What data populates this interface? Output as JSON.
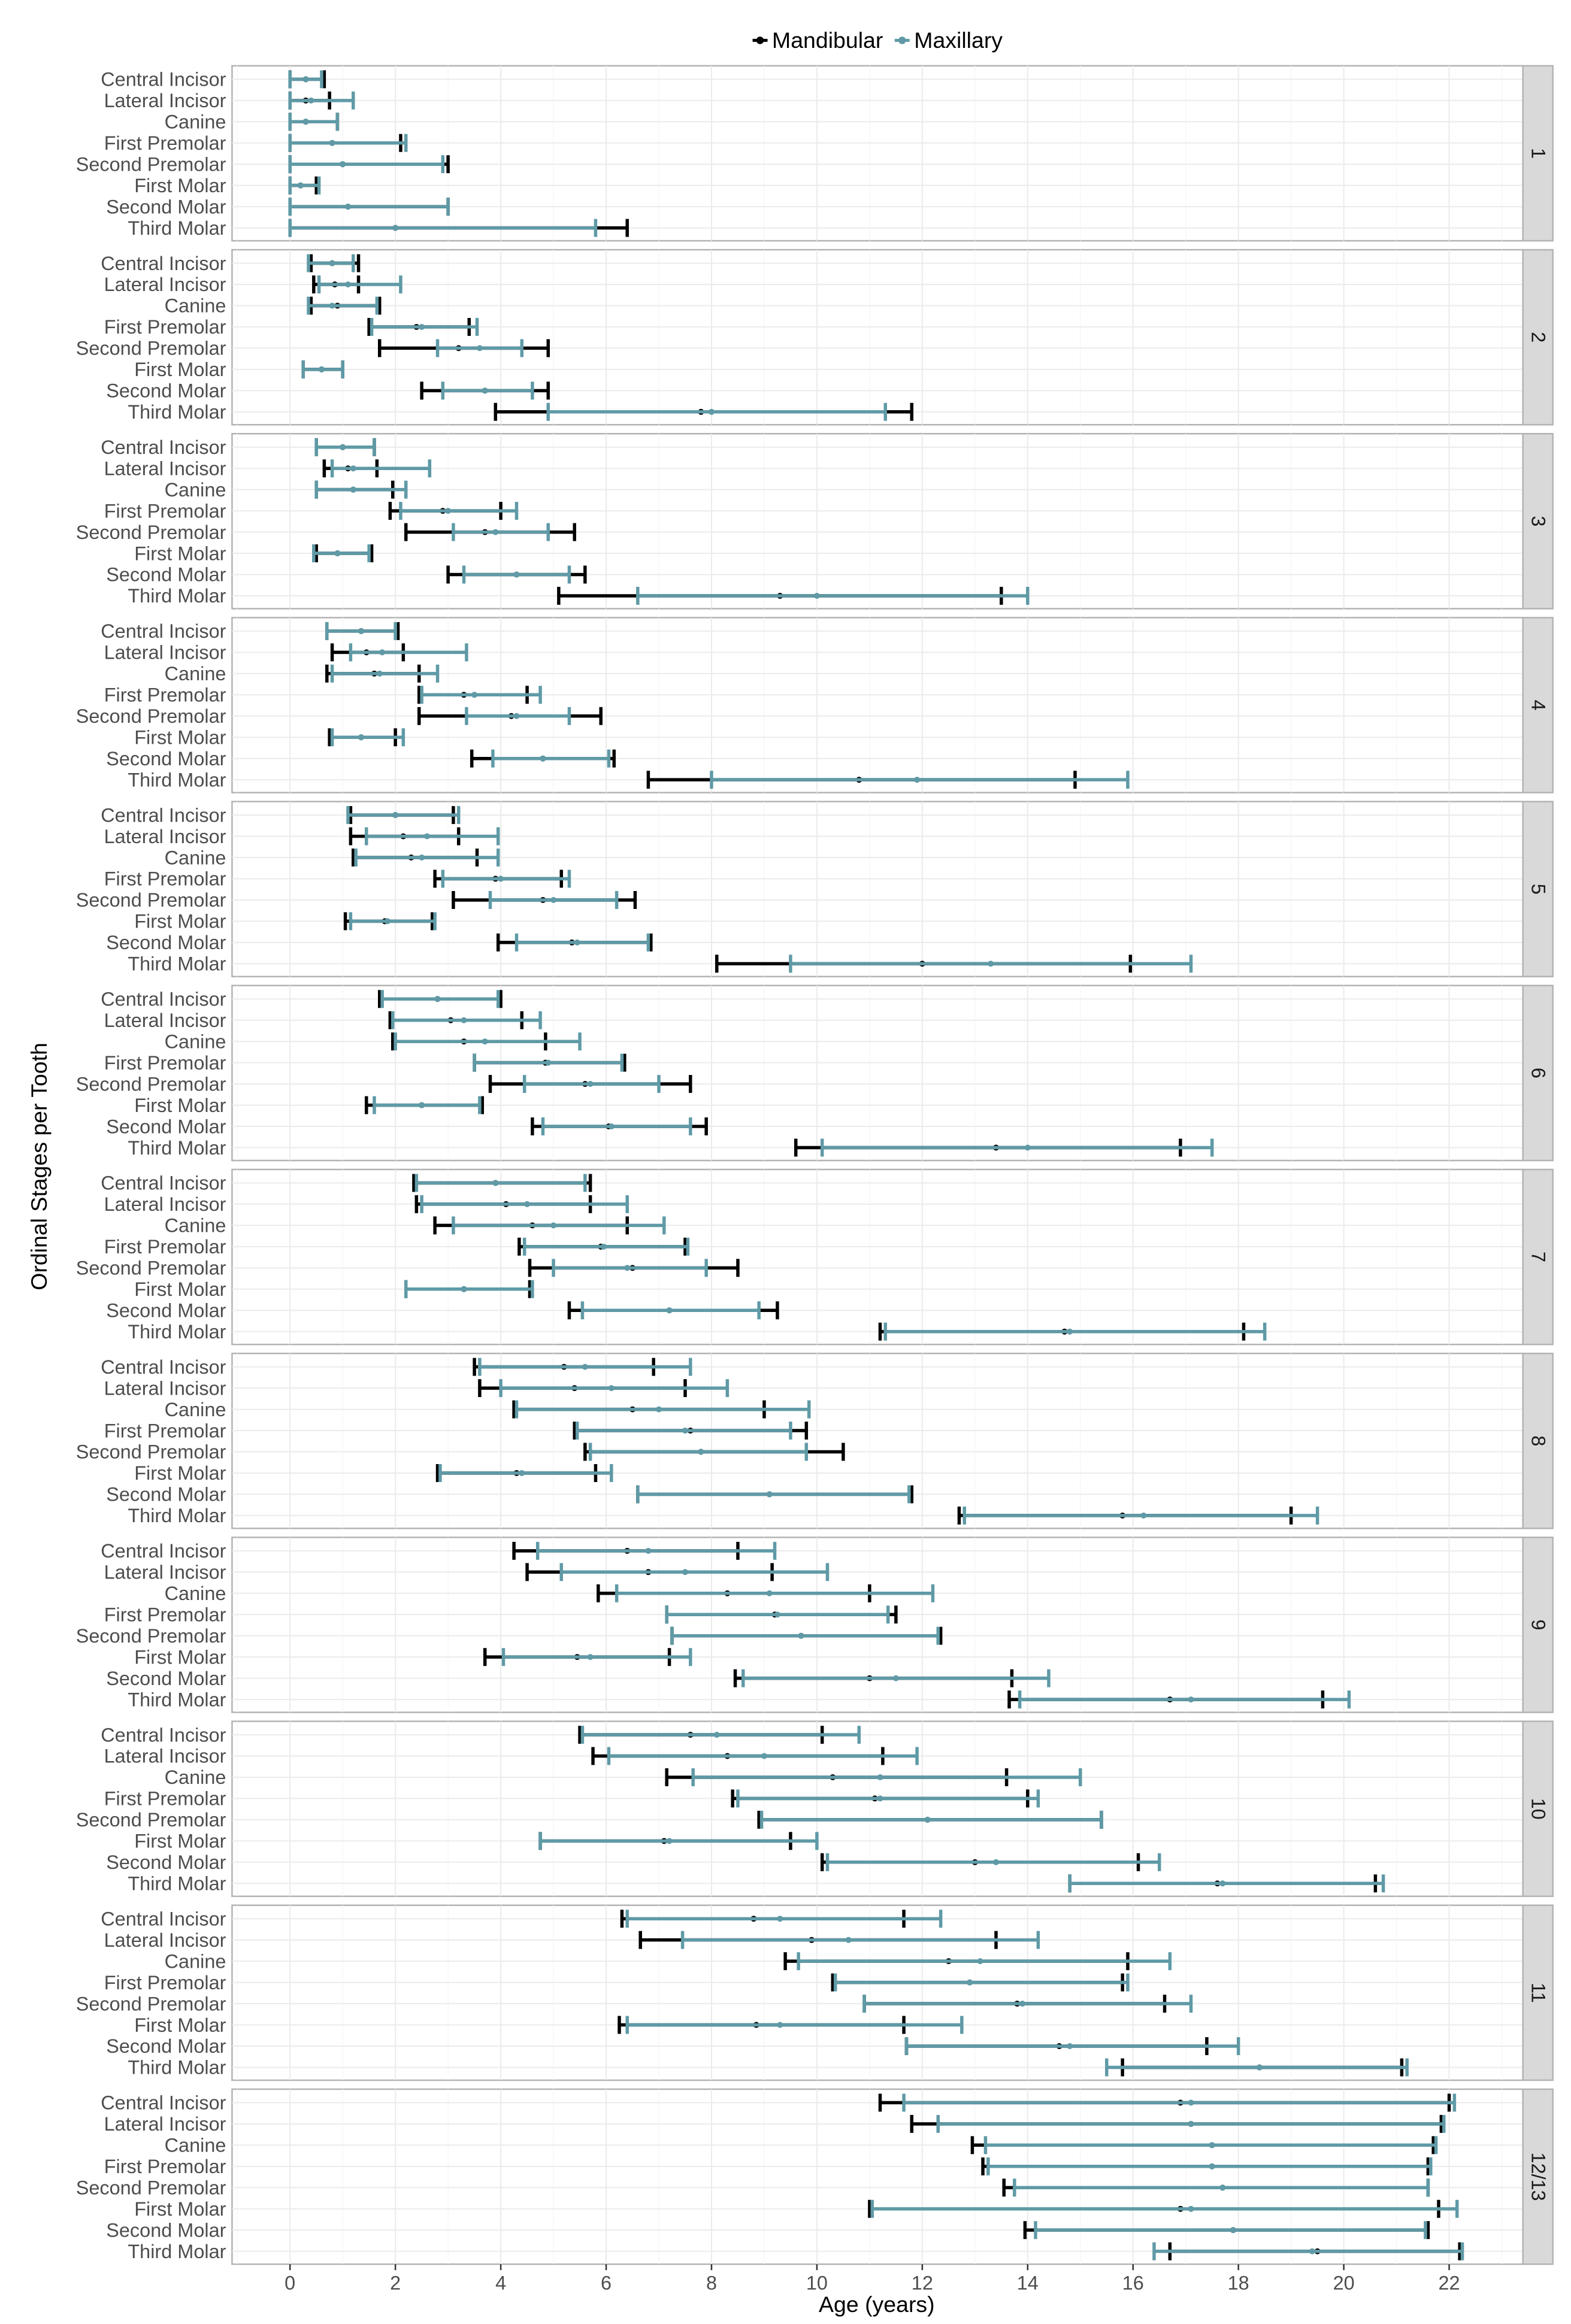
{
  "chart_data": {
    "type": "errorbar",
    "xlabel": "Age (years)",
    "ylabel": "Ordinal Stages per Tooth",
    "xlim": [
      -1.1,
      23.4
    ],
    "xticks": [
      0,
      2,
      4,
      6,
      8,
      10,
      12,
      14,
      16,
      18,
      20,
      22
    ],
    "grid": true,
    "legend": {
      "position": "top",
      "entries": [
        "Mandibular",
        "Maxillary"
      ]
    },
    "colors": {
      "Mandibular": "#000000",
      "Maxillary": "#5f9aa6"
    },
    "teeth": [
      "Central Incisor",
      "Lateral Incisor",
      "Canine",
      "First Premolar",
      "Second Premolar",
      "First Molar",
      "Second Molar",
      "Third Molar"
    ],
    "value_format": "[lower, median, upper] age in years per tooth",
    "stages": [
      {
        "label": "1",
        "Mandibular": [
          [
            0,
            0.3,
            0.65
          ],
          [
            0,
            0.3,
            0.75
          ],
          [
            0,
            0.3,
            0.9
          ],
          [
            0,
            0.8,
            2.1
          ],
          [
            0,
            1.0,
            3.0
          ],
          [
            0,
            0.2,
            0.5
          ],
          [
            0,
            1.1,
            3.0
          ],
          [
            0,
            2.0,
            6.4
          ]
        ],
        "Maxillary": [
          [
            0,
            0.3,
            0.6
          ],
          [
            0,
            0.4,
            1.2
          ],
          [
            0,
            0.3,
            0.9
          ],
          [
            0,
            0.8,
            2.2
          ],
          [
            0,
            1.0,
            2.9
          ],
          [
            0,
            0.2,
            0.55
          ],
          [
            0,
            1.1,
            3.0
          ],
          [
            0,
            2.0,
            5.8
          ]
        ]
      },
      {
        "label": "2",
        "Mandibular": [
          [
            0.4,
            0.8,
            1.3
          ],
          [
            0.45,
            0.85,
            1.3
          ],
          [
            0.4,
            0.9,
            1.7
          ],
          [
            1.5,
            2.4,
            3.4
          ],
          [
            1.7,
            3.2,
            4.9
          ],
          [
            0.25,
            0.6,
            1.0
          ],
          [
            2.5,
            3.7,
            4.9
          ],
          [
            3.9,
            7.8,
            11.8
          ]
        ],
        "Maxillary": [
          [
            0.35,
            0.8,
            1.2
          ],
          [
            0.55,
            1.1,
            2.1
          ],
          [
            0.35,
            0.8,
            1.65
          ],
          [
            1.55,
            2.5,
            3.55
          ],
          [
            2.8,
            3.6,
            4.4
          ],
          [
            0.25,
            0.6,
            1.0
          ],
          [
            2.9,
            3.7,
            4.6
          ],
          [
            4.9,
            8.0,
            11.3
          ]
        ]
      },
      {
        "label": "3",
        "Mandibular": [
          [
            0.5,
            1.0,
            1.6
          ],
          [
            0.65,
            1.1,
            1.65
          ],
          [
            0.5,
            1.2,
            1.95
          ],
          [
            1.9,
            2.9,
            4.0
          ],
          [
            2.2,
            3.7,
            5.4
          ],
          [
            0.5,
            0.9,
            1.55
          ],
          [
            3.0,
            4.3,
            5.6
          ],
          [
            5.1,
            9.3,
            13.5
          ]
        ],
        "Maxillary": [
          [
            0.5,
            1.0,
            1.6
          ],
          [
            0.8,
            1.2,
            2.65
          ],
          [
            0.5,
            1.2,
            2.2
          ],
          [
            2.1,
            3.0,
            4.3
          ],
          [
            3.1,
            3.9,
            4.9
          ],
          [
            0.45,
            0.9,
            1.5
          ],
          [
            3.3,
            4.3,
            5.3
          ],
          [
            6.6,
            10.0,
            14.0
          ]
        ]
      },
      {
        "label": "4",
        "Mandibular": [
          [
            0.7,
            1.35,
            2.05
          ],
          [
            0.8,
            1.45,
            2.15
          ],
          [
            0.7,
            1.6,
            2.45
          ],
          [
            2.45,
            3.3,
            4.5
          ],
          [
            2.45,
            4.2,
            5.9
          ],
          [
            0.75,
            1.35,
            2.0
          ],
          [
            3.45,
            4.8,
            6.15
          ],
          [
            6.8,
            10.8,
            14.9
          ]
        ],
        "Maxillary": [
          [
            0.7,
            1.35,
            2.0
          ],
          [
            1.15,
            1.75,
            3.35
          ],
          [
            0.8,
            1.7,
            2.8
          ],
          [
            2.5,
            3.5,
            4.75
          ],
          [
            3.35,
            4.3,
            5.3
          ],
          [
            0.8,
            1.35,
            2.15
          ],
          [
            3.85,
            4.8,
            6.05
          ],
          [
            8.0,
            11.9,
            15.9
          ]
        ]
      },
      {
        "label": "5",
        "Mandibular": [
          [
            1.15,
            2.0,
            3.1
          ],
          [
            1.15,
            2.15,
            3.2
          ],
          [
            1.2,
            2.3,
            3.55
          ],
          [
            2.75,
            3.9,
            5.15
          ],
          [
            3.1,
            4.8,
            6.55
          ],
          [
            1.05,
            1.8,
            2.7
          ],
          [
            3.95,
            5.35,
            6.85
          ],
          [
            8.1,
            12.0,
            15.95
          ]
        ],
        "Maxillary": [
          [
            1.1,
            2.0,
            3.2
          ],
          [
            1.45,
            2.6,
            3.95
          ],
          [
            1.25,
            2.5,
            3.95
          ],
          [
            2.9,
            4.0,
            5.3
          ],
          [
            3.8,
            5.0,
            6.2
          ],
          [
            1.15,
            1.85,
            2.75
          ],
          [
            4.3,
            5.45,
            6.8
          ],
          [
            9.5,
            13.3,
            17.1
          ]
        ]
      },
      {
        "label": "6",
        "Mandibular": [
          [
            1.7,
            2.8,
            4.0
          ],
          [
            1.9,
            3.05,
            4.4
          ],
          [
            1.95,
            3.3,
            4.85
          ],
          [
            3.5,
            4.85,
            6.35
          ],
          [
            3.8,
            5.6,
            7.6
          ],
          [
            1.45,
            2.5,
            3.65
          ],
          [
            4.6,
            6.05,
            7.9
          ],
          [
            9.6,
            13.4,
            16.9
          ]
        ],
        "Maxillary": [
          [
            1.75,
            2.8,
            3.95
          ],
          [
            1.95,
            3.3,
            4.75
          ],
          [
            2.0,
            3.7,
            5.5
          ],
          [
            3.5,
            4.9,
            6.3
          ],
          [
            4.45,
            5.7,
            7.0
          ],
          [
            1.6,
            2.5,
            3.6
          ],
          [
            4.8,
            6.1,
            7.6
          ],
          [
            10.1,
            14.0,
            17.5
          ]
        ]
      },
      {
        "label": "7",
        "Mandibular": [
          [
            2.35,
            3.9,
            5.7
          ],
          [
            2.4,
            4.1,
            5.7
          ],
          [
            2.75,
            4.6,
            6.4
          ],
          [
            4.35,
            5.9,
            7.5
          ],
          [
            4.55,
            6.5,
            8.5
          ],
          [
            2.2,
            3.3,
            4.55
          ],
          [
            5.3,
            7.2,
            9.25
          ],
          [
            11.2,
            14.7,
            18.1
          ]
        ],
        "Maxillary": [
          [
            2.4,
            3.9,
            5.6
          ],
          [
            2.5,
            4.5,
            6.4
          ],
          [
            3.1,
            5.0,
            7.1
          ],
          [
            4.45,
            5.95,
            7.55
          ],
          [
            5.0,
            6.4,
            7.9
          ],
          [
            2.2,
            3.3,
            4.6
          ],
          [
            5.55,
            7.2,
            8.9
          ],
          [
            11.3,
            14.8,
            18.5
          ]
        ]
      },
      {
        "label": "8",
        "Mandibular": [
          [
            3.5,
            5.2,
            6.9
          ],
          [
            3.6,
            5.4,
            7.5
          ],
          [
            4.25,
            6.5,
            9.0
          ],
          [
            5.4,
            7.6,
            9.8
          ],
          [
            5.6,
            7.8,
            10.5
          ],
          [
            2.8,
            4.3,
            5.8
          ],
          [
            6.6,
            9.1,
            11.8
          ],
          [
            12.7,
            15.8,
            19.0
          ]
        ],
        "Maxillary": [
          [
            3.6,
            5.6,
            7.6
          ],
          [
            4.0,
            6.1,
            8.3
          ],
          [
            4.3,
            7.0,
            9.85
          ],
          [
            5.45,
            7.5,
            9.5
          ],
          [
            5.7,
            7.8,
            9.8
          ],
          [
            2.85,
            4.4,
            6.1
          ],
          [
            6.6,
            9.1,
            11.75
          ],
          [
            12.8,
            16.2,
            19.5
          ]
        ]
      },
      {
        "label": "9",
        "Mandibular": [
          [
            4.25,
            6.4,
            8.5
          ],
          [
            4.5,
            6.8,
            9.15
          ],
          [
            5.85,
            8.3,
            11.0
          ],
          [
            7.15,
            9.2,
            11.5
          ],
          [
            7.25,
            9.7,
            12.35
          ],
          [
            3.7,
            5.45,
            7.2
          ],
          [
            8.45,
            11.0,
            13.7
          ],
          [
            13.65,
            16.7,
            19.6
          ]
        ],
        "Maxillary": [
          [
            4.7,
            6.8,
            9.2
          ],
          [
            5.15,
            7.5,
            10.2
          ],
          [
            6.2,
            9.1,
            12.2
          ],
          [
            7.15,
            9.25,
            11.35
          ],
          [
            7.25,
            9.7,
            12.3
          ],
          [
            4.05,
            5.7,
            7.6
          ],
          [
            8.6,
            11.5,
            14.4
          ],
          [
            13.85,
            17.1,
            20.1
          ]
        ]
      },
      {
        "label": "10",
        "Mandibular": [
          [
            5.5,
            7.6,
            10.1
          ],
          [
            5.75,
            8.3,
            11.25
          ],
          [
            7.15,
            10.3,
            13.6
          ],
          [
            8.4,
            11.1,
            14.0
          ],
          [
            8.9,
            12.1,
            15.4
          ],
          [
            4.75,
            7.1,
            9.5
          ],
          [
            10.1,
            13.0,
            16.1
          ],
          [
            14.8,
            17.6,
            20.6
          ]
        ],
        "Maxillary": [
          [
            5.55,
            8.1,
            10.8
          ],
          [
            6.05,
            9.0,
            11.9
          ],
          [
            7.65,
            11.2,
            15.0
          ],
          [
            8.5,
            11.2,
            14.2
          ],
          [
            8.95,
            12.1,
            15.4
          ],
          [
            4.75,
            7.2,
            10.0
          ],
          [
            10.2,
            13.4,
            16.5
          ],
          [
            14.8,
            17.7,
            20.75
          ]
        ]
      },
      {
        "label": "11",
        "Mandibular": [
          [
            6.3,
            8.8,
            11.65
          ],
          [
            6.65,
            9.9,
            13.4
          ],
          [
            9.4,
            12.5,
            15.9
          ],
          [
            10.3,
            12.9,
            15.8
          ],
          [
            10.9,
            13.8,
            16.6
          ],
          [
            6.25,
            8.85,
            11.65
          ],
          [
            11.7,
            14.6,
            17.4
          ],
          [
            15.8,
            18.4,
            21.1
          ]
        ],
        "Maxillary": [
          [
            6.4,
            9.3,
            12.35
          ],
          [
            7.45,
            10.6,
            14.2
          ],
          [
            9.65,
            13.1,
            16.7
          ],
          [
            10.35,
            12.9,
            15.9
          ],
          [
            10.9,
            13.9,
            17.1
          ],
          [
            6.4,
            9.3,
            12.75
          ],
          [
            11.7,
            14.8,
            18.0
          ],
          [
            15.5,
            18.4,
            21.2
          ]
        ]
      },
      {
        "label": "12/13",
        "Mandibular": [
          [
            11.2,
            16.9,
            22.0
          ],
          [
            11.8,
            17.1,
            21.85
          ],
          [
            12.95,
            17.5,
            21.7
          ],
          [
            13.15,
            17.5,
            21.6
          ],
          [
            13.55,
            17.7,
            21.6
          ],
          [
            11.0,
            16.9,
            21.8
          ],
          [
            13.95,
            17.9,
            21.6
          ],
          [
            16.7,
            19.5,
            22.2
          ]
        ],
        "Maxillary": [
          [
            11.65,
            17.1,
            22.1
          ],
          [
            12.3,
            17.1,
            21.9
          ],
          [
            13.2,
            17.5,
            21.75
          ],
          [
            13.25,
            17.5,
            21.65
          ],
          [
            13.75,
            17.7,
            21.6
          ],
          [
            11.05,
            17.1,
            22.15
          ],
          [
            14.15,
            17.9,
            21.55
          ],
          [
            16.4,
            19.4,
            22.25
          ]
        ]
      }
    ]
  }
}
